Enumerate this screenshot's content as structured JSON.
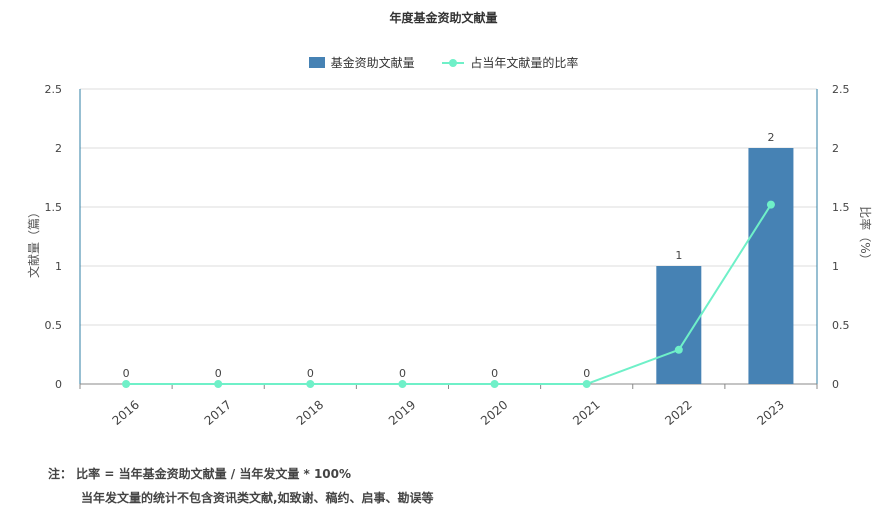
{
  "chart_data": {
    "type": "bar",
    "title": "年度基金资助文献量",
    "categories": [
      "2016",
      "2017",
      "2018",
      "2019",
      "2020",
      "2021",
      "2022",
      "2023"
    ],
    "series": [
      {
        "name": "基金资助文献量",
        "type": "bar",
        "axis": "left",
        "color": "#4682b4",
        "values": [
          0,
          0,
          0,
          0,
          0,
          0,
          1,
          2
        ]
      },
      {
        "name": "占当年文献量的比率",
        "type": "line",
        "axis": "right",
        "color": "#6ff0c8",
        "values": [
          0,
          0,
          0,
          0,
          0,
          0,
          0.29,
          1.52
        ]
      }
    ],
    "data_labels": [
      "0",
      "0",
      "0",
      "0",
      "0",
      "0",
      "1",
      "2"
    ],
    "ylabel": "文献量（篇）",
    "y2label": "比率（%）",
    "ylim": [
      0,
      2.5
    ],
    "y2lim": [
      0,
      2.5
    ],
    "yticks": [
      "0",
      "0.5",
      "1",
      "1.5",
      "2",
      "2.5"
    ],
    "y2ticks": [
      "0",
      "0.5",
      "1",
      "1.5",
      "2",
      "2.5"
    ],
    "grid": true,
    "legend_position": "top"
  },
  "notes": {
    "line1": "注： 比率 = 当年基金资助文献量 / 当年发文量 * 100%",
    "line2": "当年发文量的统计不包含资讯类文献,如致谢、稿约、启事、勘误等"
  }
}
